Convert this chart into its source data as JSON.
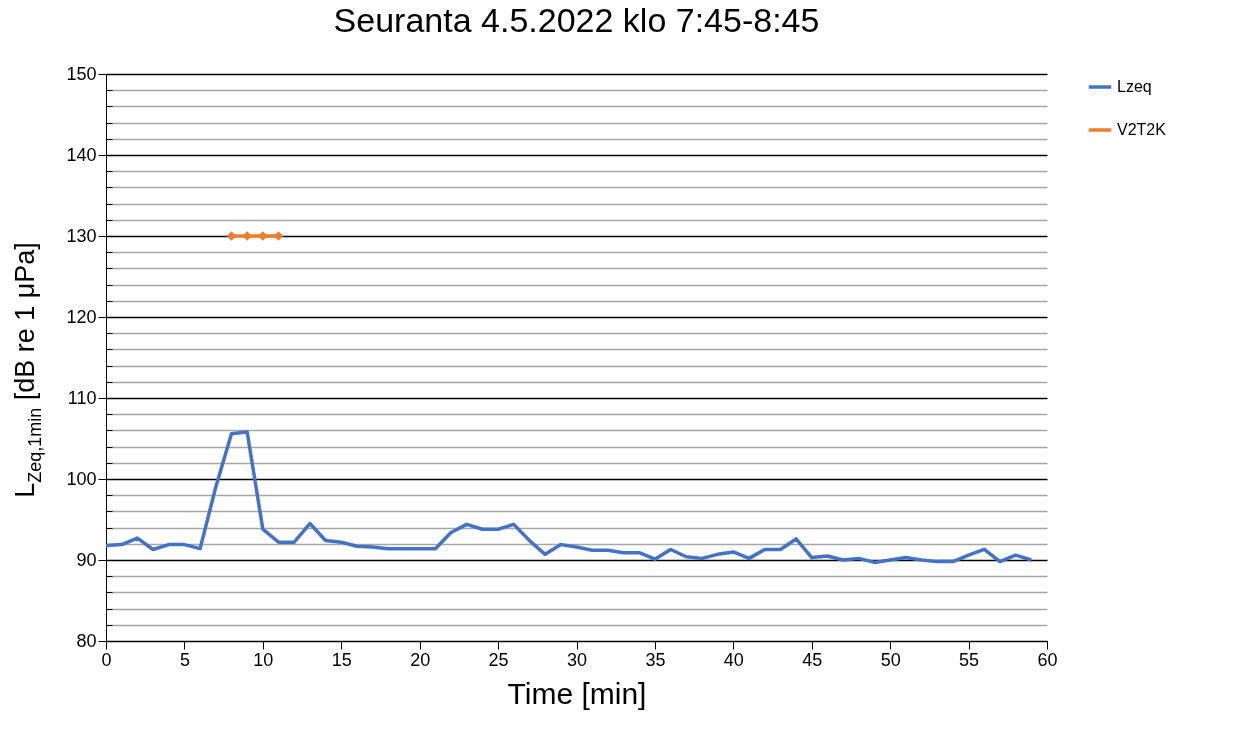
{
  "chart_data": {
    "type": "line",
    "title": "Seuranta 4.5.2022 klo 7:45-8:45",
    "xlabel": "Time [min]",
    "ylabel": "L$_{Zeq,1min}$ [dB re 1 μPa]",
    "xlim": [
      0,
      60
    ],
    "xticks": [
      0,
      5,
      10,
      15,
      20,
      25,
      30,
      35,
      40,
      45,
      50,
      55,
      60
    ],
    "ylim": [
      80,
      150
    ],
    "yticks": [
      80,
      90,
      100,
      110,
      120,
      130,
      140,
      150
    ],
    "grid": "y",
    "legend": "right",
    "series": [
      {
        "name": "Lzeq",
        "color": "#4472c4",
        "marker": "none",
        "x": [
          0,
          1,
          2,
          3,
          4,
          5,
          6,
          7,
          8,
          9,
          10,
          11,
          12,
          13,
          14,
          15,
          16,
          17,
          18,
          19,
          20,
          21,
          22,
          23,
          24,
          25,
          26,
          27,
          28,
          29,
          30,
          31,
          32,
          33,
          34,
          35,
          36,
          37,
          38,
          39,
          40,
          41,
          42,
          43,
          44,
          45,
          46,
          47,
          48,
          49,
          50,
          51,
          52,
          53,
          54,
          55,
          56,
          57,
          58,
          59
        ],
        "values": [
          91.8,
          91.9,
          92.7,
          91.3,
          91.9,
          91.9,
          91.4,
          99,
          105.6,
          105.8,
          93.8,
          92.2,
          92.2,
          94.5,
          92.4,
          92.2,
          91.7,
          91.6,
          91.4,
          91.4,
          91.4,
          91.4,
          93.4,
          94.4,
          93.8,
          93.8,
          94.4,
          92.4,
          90.7,
          91.9,
          91.6,
          91.2,
          91.2,
          90.9,
          90.9,
          90.1,
          91.3,
          90.4,
          90.2,
          90.7,
          91,
          90.2,
          91.3,
          91.3,
          92.6,
          90.3,
          90.5,
          90,
          90.2,
          89.7,
          90,
          90.3,
          90,
          89.8,
          89.8,
          90.6,
          91.3,
          89.8,
          90.6,
          90
        ]
      },
      {
        "name": "V2T2K",
        "color": "#ed7d31",
        "marker": "diamond",
        "x": [
          8,
          9,
          10,
          11
        ],
        "values": [
          130,
          130,
          130,
          130
        ]
      }
    ]
  }
}
